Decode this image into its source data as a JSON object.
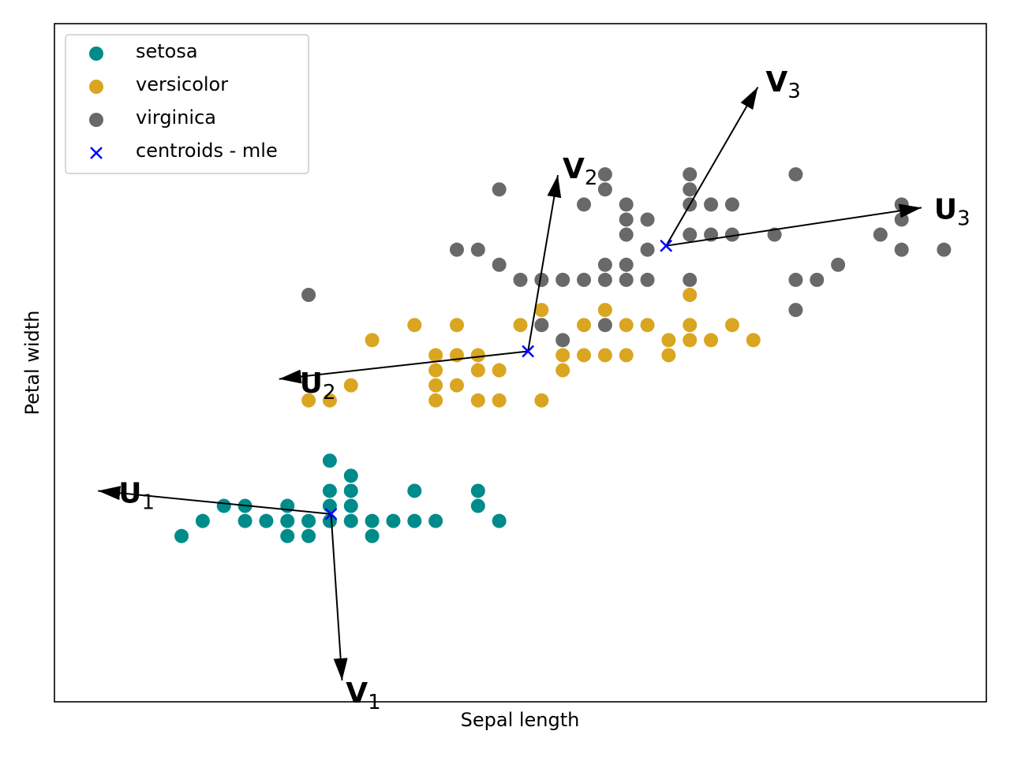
{
  "chart_data": {
    "type": "scatter",
    "xlabel": "Sepal length",
    "ylabel": "Petal width",
    "xlim": [
      3.7,
      8.1
    ],
    "ylim": [
      -1.0,
      3.5
    ],
    "legend": "upper left",
    "series": [
      {
        "name": "setosa",
        "color": "#008b8b",
        "marker": "o",
        "x": [
          4.3,
          4.4,
          4.5,
          4.6,
          4.6,
          4.7,
          4.8,
          4.8,
          4.8,
          4.9,
          4.9,
          5.0,
          5.0,
          5.0,
          5.0,
          5.1,
          5.1,
          5.1,
          5.1,
          5.2,
          5.2,
          5.3,
          5.4,
          5.4,
          5.5,
          5.7,
          5.7,
          5.8
        ],
        "y": [
          0.1,
          0.2,
          0.3,
          0.3,
          0.2,
          0.2,
          0.3,
          0.2,
          0.1,
          0.2,
          0.1,
          0.6,
          0.4,
          0.3,
          0.2,
          0.5,
          0.4,
          0.3,
          0.2,
          0.2,
          0.1,
          0.2,
          0.4,
          0.2,
          0.2,
          0.4,
          0.3,
          0.2
        ]
      },
      {
        "name": "versicolor",
        "color": "#daa520",
        "marker": "o",
        "x": [
          4.9,
          5.0,
          5.1,
          5.2,
          5.4,
          5.5,
          5.5,
          5.5,
          5.5,
          5.6,
          5.6,
          5.6,
          5.7,
          5.7,
          5.7,
          5.8,
          5.8,
          5.9,
          6.0,
          6.0,
          6.1,
          6.1,
          6.2,
          6.2,
          6.3,
          6.3,
          6.4,
          6.4,
          6.5,
          6.6,
          6.6,
          6.7,
          6.7,
          6.7,
          6.8,
          6.9,
          7.0
        ],
        "y": [
          1.0,
          1.0,
          1.1,
          1.4,
          1.5,
          1.3,
          1.2,
          1.1,
          1.0,
          1.5,
          1.3,
          1.1,
          1.3,
          1.2,
          1.0,
          1.2,
          1.0,
          1.5,
          1.6,
          1.0,
          1.3,
          1.2,
          1.5,
          1.3,
          1.6,
          1.3,
          1.5,
          1.3,
          1.5,
          1.4,
          1.3,
          1.7,
          1.5,
          1.4,
          1.4,
          1.5,
          1.4
        ]
      },
      {
        "name": "virginica",
        "color": "#696969",
        "marker": "o",
        "x": [
          4.9,
          5.6,
          5.7,
          5.8,
          5.8,
          5.9,
          6.0,
          6.0,
          6.1,
          6.1,
          6.2,
          6.2,
          6.3,
          6.3,
          6.3,
          6.3,
          6.3,
          6.4,
          6.4,
          6.4,
          6.4,
          6.4,
          6.5,
          6.5,
          6.5,
          6.7,
          6.7,
          6.7,
          6.7,
          6.7,
          6.8,
          6.8,
          6.9,
          6.9,
          7.1,
          7.2,
          7.2,
          7.2,
          7.3,
          7.4,
          7.6,
          7.7,
          7.7,
          7.7,
          7.9
        ],
        "y": [
          1.7,
          2.0,
          2.0,
          2.4,
          1.9,
          1.8,
          1.8,
          1.5,
          1.8,
          1.4,
          2.3,
          1.8,
          2.5,
          2.4,
          1.9,
          1.8,
          1.5,
          2.3,
          2.2,
          2.1,
          1.9,
          1.8,
          2.2,
          2.0,
          1.8,
          2.5,
          2.4,
          2.3,
          2.1,
          1.8,
          2.3,
          2.1,
          2.3,
          2.1,
          2.1,
          2.5,
          1.8,
          1.6,
          1.8,
          1.9,
          2.1,
          2.3,
          2.2,
          2.0,
          2.0
        ]
      },
      {
        "name": "centroids - mle",
        "color": "#0000ff",
        "marker": "x",
        "x": [
          5.006,
          5.936,
          6.588
        ],
        "y": [
          0.246,
          1.326,
          2.026
        ]
      }
    ],
    "arrows": [
      {
        "label": "U",
        "subscript": "1",
        "x": [
          5.006,
          3.906
        ],
        "y": [
          0.246,
          0.4
        ]
      },
      {
        "label": "V",
        "subscript": "1",
        "x": [
          5.006,
          5.058
        ],
        "y": [
          0.246,
          -0.858
        ]
      },
      {
        "label": "U",
        "subscript": "2",
        "x": [
          5.936,
          4.761
        ],
        "y": [
          1.326,
          1.142
        ]
      },
      {
        "label": "V",
        "subscript": "2",
        "x": [
          5.936,
          6.077
        ],
        "y": [
          1.326,
          2.495
        ]
      },
      {
        "label": "U",
        "subscript": "3",
        "x": [
          6.588,
          7.794
        ],
        "y": [
          2.026,
          2.279
        ]
      },
      {
        "label": "V",
        "subscript": "3",
        "x": [
          6.588,
          7.021
        ],
        "y": [
          2.026,
          3.079
        ]
      }
    ]
  }
}
